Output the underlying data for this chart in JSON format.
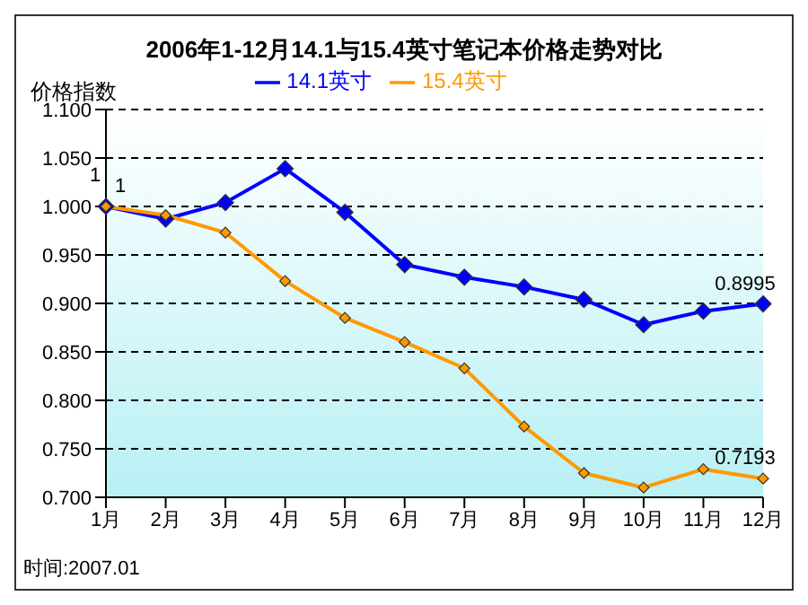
{
  "chart_data": {
    "type": "line",
    "title": "2006年1-12月14.1与15.4英寸笔记本价格走势对比",
    "ylabel": "价格指数",
    "categories": [
      "1月",
      "2月",
      "3月",
      "4月",
      "5月",
      "6月",
      "7月",
      "8月",
      "9月",
      "10月",
      "11月",
      "12月"
    ],
    "series": [
      {
        "name": "14.1英寸",
        "color": "#0000ff",
        "values": [
          1,
          0.987,
          1.004,
          1.039,
          0.994,
          0.94,
          0.927,
          0.917,
          0.904,
          0.878,
          0.892,
          0.8995
        ],
        "value_labels": [
          "1",
          null,
          null,
          null,
          null,
          null,
          null,
          null,
          null,
          null,
          null,
          "0.8995"
        ]
      },
      {
        "name": "15.4英寸",
        "color": "#ff9900",
        "values": [
          1,
          0.991,
          0.973,
          0.923,
          0.885,
          0.86,
          0.833,
          0.773,
          0.725,
          0.71,
          0.729,
          0.7193
        ],
        "value_labels": [
          "1",
          null,
          null,
          null,
          null,
          null,
          null,
          null,
          null,
          null,
          null,
          "0.7193"
        ]
      }
    ],
    "ylim": [
      0.7,
      1.1
    ],
    "yticks": [
      {
        "value": 0.7,
        "label": "0.700"
      },
      {
        "value": 0.75,
        "label": "0.750"
      },
      {
        "value": 0.8,
        "label": "0.800"
      },
      {
        "value": 0.85,
        "label": "0.850"
      },
      {
        "value": 0.9,
        "label": "0.900"
      },
      {
        "value": 0.95,
        "label": "0.950"
      },
      {
        "value": 1.0,
        "label": "1.000"
      },
      {
        "value": 1.05,
        "label": "1.050"
      },
      {
        "value": 1.1,
        "label": "1.100"
      }
    ],
    "grid": "y",
    "legend": "top",
    "marker": "diamond",
    "line_style": "solid",
    "annotations": [
      "时间:2007.01"
    ]
  }
}
